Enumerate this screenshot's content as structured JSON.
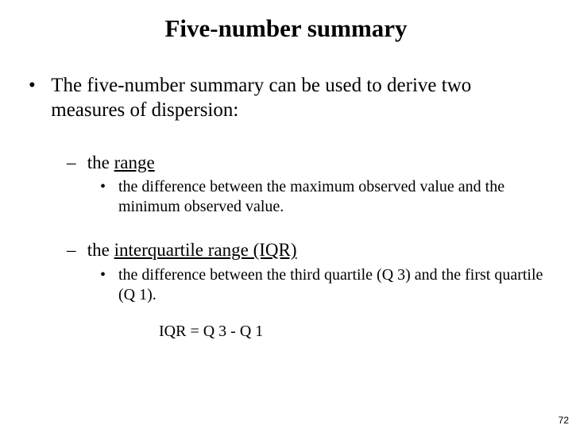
{
  "title": "Five-number summary",
  "intro": "The five-number summary can be used to derive two measures of dispersion:",
  "range": {
    "term": "range",
    "prefix": "the ",
    "desc": "the difference between the maximum observed value and the minimum observed value."
  },
  "iqr": {
    "term": "interquartile range (IQR)",
    "prefix": "the ",
    "desc": "the difference between the third quartile (Q 3) and the first quartile (Q 1).",
    "formula": "IQR = Q 3 - Q 1"
  },
  "page": "72",
  "colors": {
    "bg": "#ffffff",
    "text": "#000000"
  },
  "fonts": {
    "family": "Times New Roman",
    "title_size": 31,
    "lvl1_size": 25,
    "lvl2_size": 23,
    "lvl3_size": 20
  }
}
